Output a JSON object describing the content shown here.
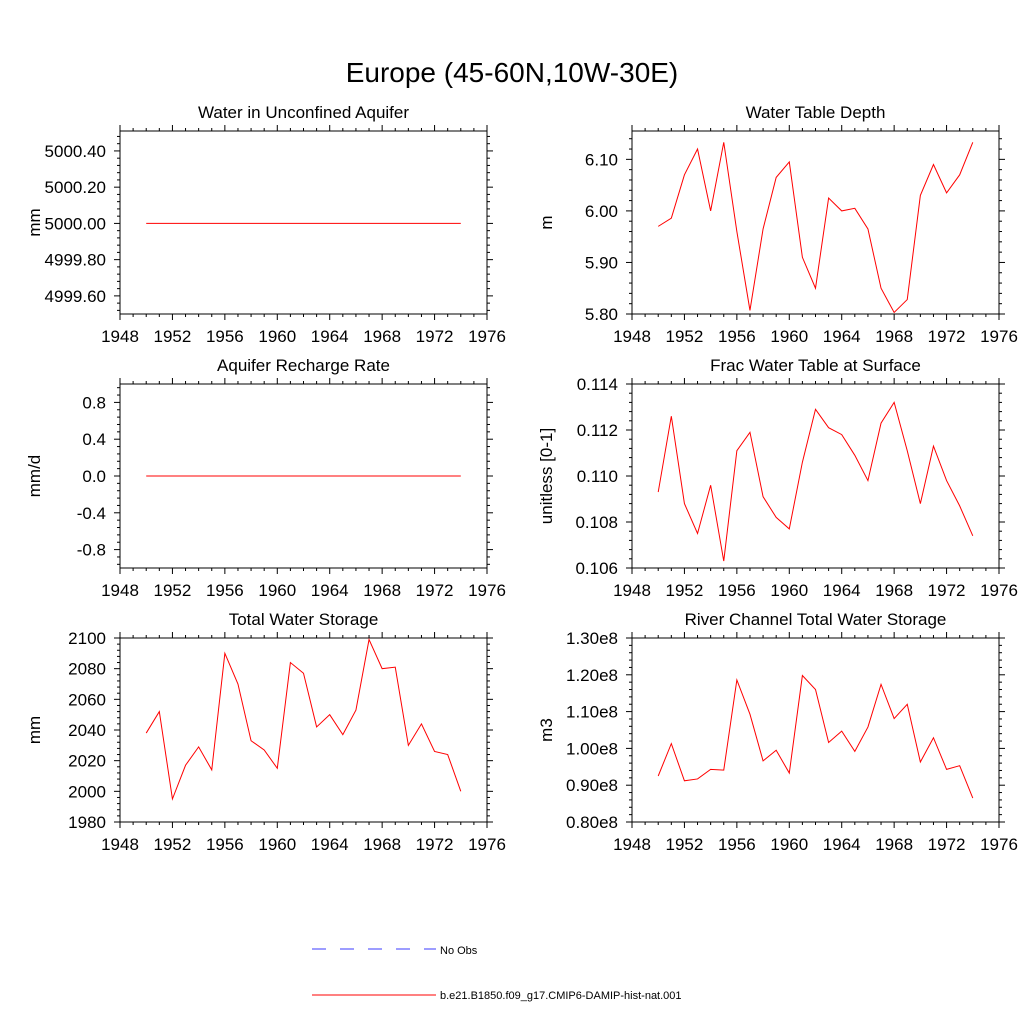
{
  "title": "Europe (45-60N,10W-30E)",
  "colors": {
    "model": "#ff0000",
    "obs": "#3b3bff",
    "axis": "#000000"
  },
  "legend": {
    "obs_label": "No Obs",
    "model_label": "b.e21.B1850.f09_g17.CMIP6-DAMIP-hist-nat.001"
  },
  "chart_data": [
    {
      "type": "line",
      "title": "Water in Unconfined Aquifer",
      "ylabel": "mm",
      "xlim": [
        1948,
        1976
      ],
      "xticks": [
        1948,
        1952,
        1956,
        1960,
        1964,
        1968,
        1972,
        1976
      ],
      "ylim": [
        4999.5,
        5000.51
      ],
      "yticks": [
        4999.6,
        4999.8,
        5000.0,
        5000.2,
        5000.4
      ],
      "ytick_labels": [
        "4999.60",
        "4999.80",
        "5000.00",
        "5000.20",
        "5000.40"
      ],
      "x": [
        1950,
        1974
      ],
      "series": [
        {
          "values": [
            5000.0,
            5000.0
          ]
        }
      ]
    },
    {
      "type": "line",
      "title": "Water Table Depth",
      "ylabel": "m",
      "xlim": [
        1948,
        1976
      ],
      "xticks": [
        1948,
        1952,
        1956,
        1960,
        1964,
        1968,
        1972,
        1976
      ],
      "ylim": [
        5.8,
        6.155
      ],
      "yticks": [
        5.8,
        5.9,
        6.0,
        6.1
      ],
      "ytick_labels": [
        "5.80",
        "5.90",
        "6.00",
        "6.10"
      ],
      "x": [
        1950,
        1951,
        1952,
        1953,
        1954,
        1955,
        1956,
        1957,
        1958,
        1959,
        1960,
        1961,
        1962,
        1963,
        1964,
        1965,
        1966,
        1967,
        1968,
        1969,
        1970,
        1971,
        1972,
        1973,
        1974
      ],
      "series": [
        {
          "values": [
            5.97,
            5.986,
            6.07,
            6.12,
            6.0,
            6.133,
            5.96,
            5.807,
            5.965,
            6.065,
            6.095,
            5.91,
            5.85,
            6.025,
            6.0,
            6.005,
            5.965,
            5.85,
            5.803,
            5.828,
            6.03,
            6.09,
            6.035,
            6.07,
            6.133
          ]
        }
      ]
    },
    {
      "type": "line",
      "title": "Aquifer Recharge Rate",
      "ylabel": "mm/d",
      "xlim": [
        1948,
        1976
      ],
      "xticks": [
        1948,
        1952,
        1956,
        1960,
        1964,
        1968,
        1972,
        1976
      ],
      "ylim": [
        -1.0,
        1.0
      ],
      "yticks": [
        -0.8,
        -0.4,
        0.0,
        0.4,
        0.8
      ],
      "ytick_labels": [
        "-0.8",
        "-0.4",
        "0.0",
        "0.4",
        "0.8"
      ],
      "x": [
        1950,
        1974
      ],
      "series": [
        {
          "values": [
            0.0,
            0.0
          ]
        }
      ]
    },
    {
      "type": "line",
      "title": "Frac Water Table at Surface",
      "ylabel": "unitless [0-1]",
      "xlim": [
        1948,
        1976
      ],
      "xticks": [
        1948,
        1952,
        1956,
        1960,
        1964,
        1968,
        1972,
        1976
      ],
      "ylim": [
        0.106,
        0.114
      ],
      "yticks": [
        0.106,
        0.108,
        0.11,
        0.112,
        0.114
      ],
      "ytick_labels": [
        "0.106",
        "0.108",
        "0.110",
        "0.112",
        "0.114"
      ],
      "x": [
        1950,
        1951,
        1952,
        1953,
        1954,
        1955,
        1956,
        1957,
        1958,
        1959,
        1960,
        1961,
        1962,
        1963,
        1964,
        1965,
        1966,
        1967,
        1968,
        1969,
        1970,
        1971,
        1972,
        1973,
        1974
      ],
      "series": [
        {
          "values": [
            0.1093,
            0.1126,
            0.1088,
            0.1075,
            0.1096,
            0.1063,
            0.1111,
            0.1119,
            0.1091,
            0.1082,
            0.1077,
            0.1106,
            0.1129,
            0.1121,
            0.1118,
            0.1109,
            0.1098,
            0.1123,
            0.1132,
            0.1111,
            0.1088,
            0.1113,
            0.1098,
            0.1087,
            0.1074
          ]
        }
      ]
    },
    {
      "type": "line",
      "title": "Total Water Storage",
      "ylabel": "mm",
      "xlim": [
        1948,
        1976
      ],
      "xticks": [
        1948,
        1952,
        1956,
        1960,
        1964,
        1968,
        1972,
        1976
      ],
      "ylim": [
        1980,
        2100
      ],
      "yticks": [
        1980,
        2000,
        2020,
        2040,
        2060,
        2080,
        2100
      ],
      "ytick_labels": [
        "1980",
        "2000",
        "2020",
        "2040",
        "2060",
        "2080",
        "2100"
      ],
      "x": [
        1950,
        1951,
        1952,
        1953,
        1954,
        1955,
        1956,
        1957,
        1958,
        1959,
        1960,
        1961,
        1962,
        1963,
        1964,
        1965,
        1966,
        1967,
        1968,
        1969,
        1970,
        1971,
        1972,
        1973,
        1974
      ],
      "series": [
        {
          "values": [
            2038,
            2052,
            1995,
            2017,
            2029,
            2014,
            2090,
            2070,
            2033,
            2027,
            2015,
            2084,
            2077,
            2042,
            2050,
            2037,
            2053,
            2099,
            2080,
            2081,
            2030,
            2044,
            2026,
            2024,
            2000
          ]
        }
      ]
    },
    {
      "type": "line",
      "title": "River Channel Total Water Storage",
      "ylabel": "m3",
      "xlim": [
        1948,
        1976
      ],
      "xticks": [
        1948,
        1952,
        1956,
        1960,
        1964,
        1968,
        1972,
        1976
      ],
      "ylim": [
        0.8,
        1.3
      ],
      "yticks": [
        0.8,
        0.9,
        1.0,
        1.1,
        1.2,
        1.3
      ],
      "ytick_labels": [
        "0.80e8",
        "0.90e8",
        "1.00e8",
        "1.10e8",
        "1.20e8",
        "1.30e8"
      ],
      "x": [
        1950,
        1951,
        1952,
        1953,
        1954,
        1955,
        1956,
        1957,
        1958,
        1959,
        1960,
        1961,
        1962,
        1963,
        1964,
        1965,
        1966,
        1967,
        1968,
        1969,
        1970,
        1971,
        1972,
        1973,
        1974
      ],
      "series": [
        {
          "values": [
            0.925,
            1.013,
            0.912,
            0.917,
            0.943,
            0.941,
            1.186,
            1.093,
            0.966,
            0.995,
            0.933,
            1.198,
            1.16,
            1.016,
            1.047,
            0.992,
            1.058,
            1.174,
            1.081,
            1.12,
            0.963,
            1.029,
            0.943,
            0.953,
            0.865
          ]
        }
      ]
    }
  ]
}
